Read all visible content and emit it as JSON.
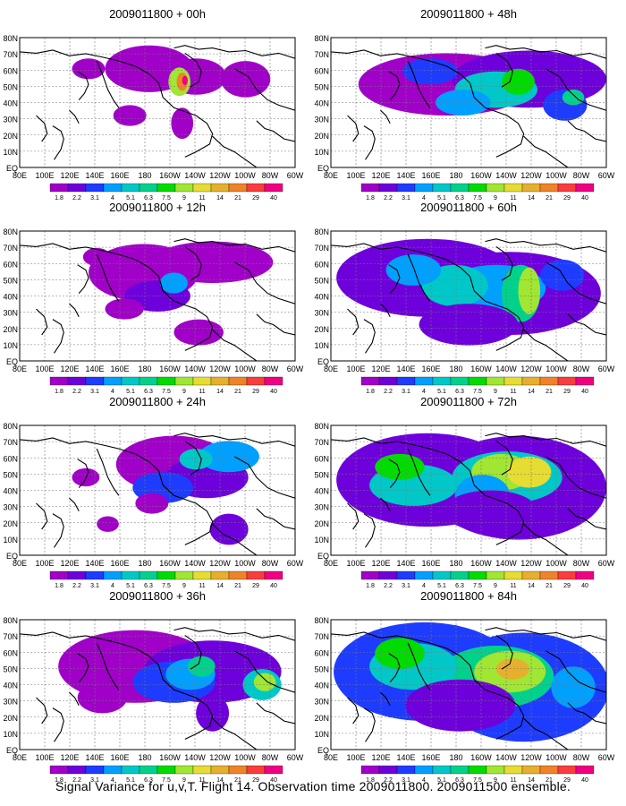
{
  "caption": "Signal Variance for u,v,T. Flight 14. Observation time 2009011800. 2009011500 ensemble.",
  "colorbar": {
    "labels": [
      "1.8",
      "2.2",
      "3.1",
      "4",
      "5.1",
      "6.3",
      "7.5",
      "9",
      "11",
      "14",
      "21",
      "29",
      "40"
    ],
    "colors": [
      "#a000c8",
      "#6e00dc",
      "#1e3cff",
      "#00a0ff",
      "#00c8c8",
      "#00d28c",
      "#00dc00",
      "#a0e632",
      "#e6dc32",
      "#e6af2d",
      "#f08228",
      "#fa3c3c",
      "#f00082"
    ]
  },
  "axes": {
    "lon_labels": [
      "80E",
      "100E",
      "120E",
      "140E",
      "160E",
      "180",
      "160W",
      "140W",
      "120W",
      "100W",
      "80W",
      "60W"
    ],
    "lat_labels": [
      "80N",
      "70N",
      "60N",
      "50N",
      "40N",
      "30N",
      "20N",
      "10N",
      "EQ"
    ]
  },
  "panels": [
    {
      "title": "2009011800 + 00h"
    },
    {
      "title": "2009011800 + 12h"
    },
    {
      "title": "2009011800 + 24h"
    },
    {
      "title": "2009011800 + 36h"
    },
    {
      "title": "2009011800 + 48h"
    },
    {
      "title": "2009011800 + 60h"
    },
    {
      "title": "2009011800 + 72h"
    },
    {
      "title": "2009011800 + 84h"
    }
  ]
}
